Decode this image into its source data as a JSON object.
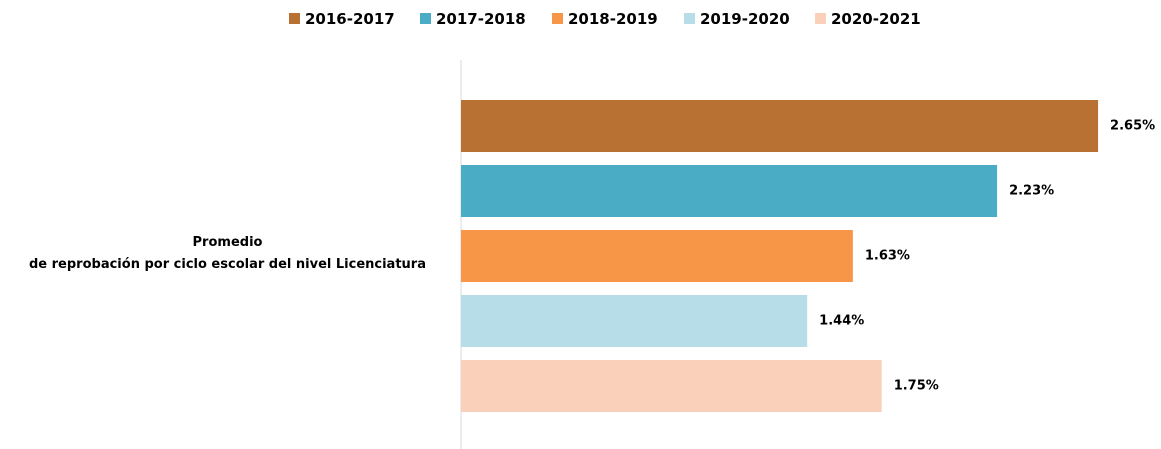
{
  "chart_data": {
    "type": "bar",
    "orientation": "horizontal",
    "categories": [
      "Promedio\nde reprobación por ciclo escolar del nivel Licenciatura"
    ],
    "series": [
      {
        "name": "2016-2017",
        "color": "#B97133",
        "values": [
          2.65
        ],
        "value_labels": [
          "2.65%"
        ]
      },
      {
        "name": "2017-2018",
        "color": "#4BACC6",
        "values": [
          2.23
        ],
        "value_labels": [
          "2.23%"
        ]
      },
      {
        "name": "2018-2019",
        "color": "#F79646",
        "values": [
          1.63
        ],
        "value_labels": [
          "1.63%"
        ]
      },
      {
        "name": "2019-2020",
        "color": "#B7DEE8",
        "values": [
          1.44
        ],
        "value_labels": [
          "1.44%"
        ]
      },
      {
        "name": "2020-2021",
        "color": "#FBD0BB",
        "values": [
          1.75
        ],
        "value_labels": [
          "1.75%"
        ]
      }
    ],
    "legend": "top"
  }
}
